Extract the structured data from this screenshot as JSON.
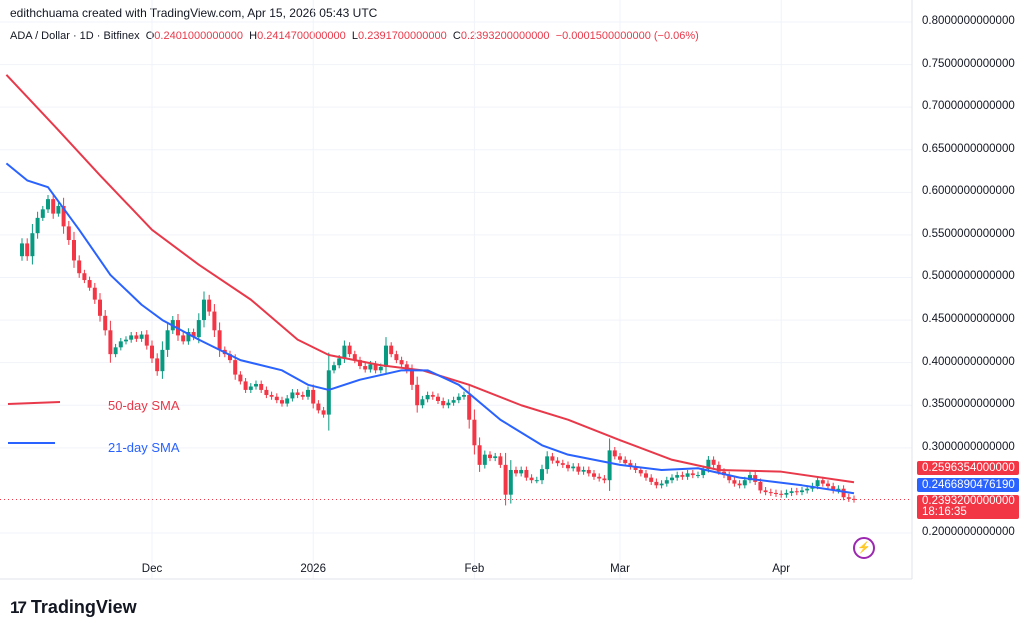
{
  "header": {
    "credit": "edithchuama created with TradingView.com, Apr 15, 2026 05:43 UTC",
    "symbol": "ADA / Dollar · 1D · Bitfinex",
    "open_label": "O",
    "open": "0.2401000000000",
    "high_label": "H",
    "high": "0.2414700000000",
    "low_label": "L",
    "low": "0.2391700000000",
    "close_label": "C",
    "close": "0.2393200000000",
    "change": "−0.0001500000000 (−0.06%)"
  },
  "colors": {
    "up": "#089981",
    "down": "#f23645",
    "sma50": "#e8394a",
    "sma21": "#2962ff",
    "grid": "#f0f3fa"
  },
  "chart_data": {
    "type": "candlestick",
    "x_ticks": [
      {
        "label": "Dec",
        "date": "2025-12-01"
      },
      {
        "label": "2026",
        "date": "2026-01-01"
      },
      {
        "label": "Feb",
        "date": "2026-02-01"
      },
      {
        "label": "Mar",
        "date": "2026-03-01"
      },
      {
        "label": "Apr",
        "date": "2026-04-01"
      }
    ],
    "y_ticks": [
      "0.8000000000000",
      "0.7500000000000",
      "0.7000000000000",
      "0.6500000000000",
      "0.6000000000000",
      "0.5500000000000",
      "0.5000000000000",
      "0.4500000000000",
      "0.4000000000000",
      "0.3500000000000",
      "0.3000000000000",
      "0.2000000000000"
    ],
    "ylim": [
      0.18,
      0.82
    ],
    "first_date": "2025-11-06",
    "closes": [
      0.54,
      0.525,
      0.552,
      0.57,
      0.58,
      0.592,
      0.575,
      0.584,
      0.56,
      0.544,
      0.52,
      0.505,
      0.497,
      0.488,
      0.474,
      0.455,
      0.438,
      0.41,
      0.418,
      0.425,
      0.427,
      0.432,
      0.428,
      0.433,
      0.42,
      0.405,
      0.39,
      0.415,
      0.438,
      0.45,
      0.432,
      0.425,
      0.436,
      0.43,
      0.45,
      0.474,
      0.46,
      0.438,
      0.415,
      0.41,
      0.403,
      0.386,
      0.378,
      0.368,
      0.372,
      0.375,
      0.368,
      0.362,
      0.36,
      0.356,
      0.352,
      0.358,
      0.365,
      0.362,
      0.36,
      0.368,
      0.352,
      0.344,
      0.339,
      0.391,
      0.397,
      0.405,
      0.42,
      0.41,
      0.403,
      0.396,
      0.392,
      0.398,
      0.391,
      0.395,
      0.42,
      0.41,
      0.403,
      0.398,
      0.391,
      0.374,
      0.35,
      0.357,
      0.362,
      0.36,
      0.355,
      0.35,
      0.353,
      0.356,
      0.36,
      0.362,
      0.333,
      0.303,
      0.28,
      0.292,
      0.288,
      0.29,
      0.28,
      0.245,
      0.274,
      0.27,
      0.274,
      0.265,
      0.262,
      0.262,
      0.275,
      0.29,
      0.285,
      0.282,
      0.28,
      0.276,
      0.278,
      0.272,
      0.274,
      0.27,
      0.266,
      0.264,
      0.262,
      0.297,
      0.29,
      0.286,
      0.282,
      0.278,
      0.274,
      0.27,
      0.265,
      0.26,
      0.256,
      0.258,
      0.262,
      0.265,
      0.268,
      0.266,
      0.27,
      0.268,
      0.268,
      0.275,
      0.286,
      0.28,
      0.272,
      0.268,
      0.262,
      0.258,
      0.256,
      0.262,
      0.268,
      0.26,
      0.25,
      0.248,
      0.247,
      0.246,
      0.245,
      0.247,
      0.249,
      0.248,
      0.25,
      0.252,
      0.255,
      0.262,
      0.258,
      0.255,
      0.25,
      0.252,
      0.242,
      0.2401,
      0.2393
    ],
    "series": [
      {
        "name": "50-day SMA",
        "points": [
          [
            "2025-11-03",
            0.738
          ],
          [
            "2025-11-13",
            0.673
          ],
          [
            "2025-11-21",
            0.62
          ],
          [
            "2025-12-01",
            0.556
          ],
          [
            "2025-12-10",
            0.515
          ],
          [
            "2025-12-20",
            0.474
          ],
          [
            "2025-12-29",
            0.427
          ],
          [
            "2026-01-04",
            0.409
          ],
          [
            "2026-01-14",
            0.397
          ],
          [
            "2026-01-22",
            0.391
          ],
          [
            "2026-01-31",
            0.374
          ],
          [
            "2026-02-10",
            0.35
          ],
          [
            "2026-02-19",
            0.333
          ],
          [
            "2026-03-01",
            0.309
          ],
          [
            "2026-03-11",
            0.286
          ],
          [
            "2026-03-20",
            0.274
          ],
          [
            "2026-04-01",
            0.272
          ],
          [
            "2026-04-15",
            0.2596
          ]
        ]
      },
      {
        "name": "21-day SMA",
        "points": [
          [
            "2025-11-03",
            0.634
          ],
          [
            "2025-11-07",
            0.614
          ],
          [
            "2025-11-11",
            0.606
          ],
          [
            "2025-11-17",
            0.556
          ],
          [
            "2025-11-23",
            0.503
          ],
          [
            "2025-11-29",
            0.468
          ],
          [
            "2025-12-03",
            0.45
          ],
          [
            "2025-12-10",
            0.427
          ],
          [
            "2025-12-18",
            0.403
          ],
          [
            "2025-12-26",
            0.391
          ],
          [
            "2025-12-31",
            0.374
          ],
          [
            "2026-01-04",
            0.368
          ],
          [
            "2026-01-10",
            0.38
          ],
          [
            "2026-01-18",
            0.391
          ],
          [
            "2026-01-23",
            0.391
          ],
          [
            "2026-01-29",
            0.374
          ],
          [
            "2026-02-06",
            0.333
          ],
          [
            "2026-02-14",
            0.303
          ],
          [
            "2026-02-19",
            0.292
          ],
          [
            "2026-03-01",
            0.28
          ],
          [
            "2026-03-09",
            0.274
          ],
          [
            "2026-03-16",
            0.276
          ],
          [
            "2026-03-24",
            0.265
          ],
          [
            "2026-04-05",
            0.256
          ],
          [
            "2026-04-15",
            0.2467
          ]
        ]
      }
    ],
    "price_labels": {
      "sma50": "0.2596354000000",
      "sma21": "0.2466890476190",
      "last": "0.2393200000000",
      "countdown": "18:16:35"
    },
    "grid": true
  },
  "legend": {
    "sma50": "50-day SMA",
    "sma21": "21-day SMA"
  },
  "footer": {
    "logo": "TradingView"
  }
}
